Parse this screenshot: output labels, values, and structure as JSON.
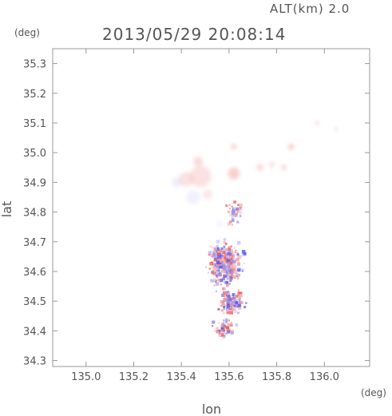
{
  "header": {
    "altitude_label": "ALT(km)  2.0",
    "timestamp": "2013/05/29  20:08:14",
    "y_unit": "(deg)",
    "x_unit": "(deg)"
  },
  "chart_data": {
    "type": "scatter",
    "title": "2013/05/29  20:08:14",
    "xlabel": "lon",
    "ylabel": "lat",
    "xlim": [
      134.86,
      136.19
    ],
    "ylim": [
      34.28,
      35.35
    ],
    "xticks": [
      "135.0",
      "135.2",
      "135.4",
      "135.6",
      "135.8",
      "136.0"
    ],
    "yticks": [
      "35.3",
      "35.2",
      "35.1",
      "35.0",
      "34.9",
      "34.8",
      "34.7",
      "34.6",
      "34.5",
      "34.4",
      "34.3"
    ],
    "grid": false,
    "colors": {
      "positive": "#f08888",
      "negative": "#8888ee",
      "axis": "#999999"
    },
    "blobs": [
      {
        "lon": 135.48,
        "lat": 34.92,
        "r": 0.045,
        "sign": "positive",
        "intensity": 0.25
      },
      {
        "lon": 135.42,
        "lat": 34.91,
        "r": 0.03,
        "sign": "positive",
        "intensity": 0.25
      },
      {
        "lon": 135.38,
        "lat": 34.9,
        "r": 0.02,
        "sign": "negative",
        "intensity": 0.15
      },
      {
        "lon": 135.45,
        "lat": 34.85,
        "r": 0.03,
        "sign": "negative",
        "intensity": 0.12
      },
      {
        "lon": 135.51,
        "lat": 34.86,
        "r": 0.02,
        "sign": "positive",
        "intensity": 0.2
      },
      {
        "lon": 135.47,
        "lat": 34.97,
        "r": 0.02,
        "sign": "positive",
        "intensity": 0.3
      },
      {
        "lon": 135.62,
        "lat": 34.93,
        "r": 0.025,
        "sign": "positive",
        "intensity": 0.4
      },
      {
        "lon": 135.62,
        "lat": 35.02,
        "r": 0.012,
        "sign": "positive",
        "intensity": 0.35
      },
      {
        "lon": 135.73,
        "lat": 34.95,
        "r": 0.015,
        "sign": "positive",
        "intensity": 0.3
      },
      {
        "lon": 135.78,
        "lat": 34.96,
        "r": 0.012,
        "sign": "positive",
        "intensity": 0.25
      },
      {
        "lon": 135.83,
        "lat": 34.95,
        "r": 0.012,
        "sign": "positive",
        "intensity": 0.3
      },
      {
        "lon": 135.86,
        "lat": 35.02,
        "r": 0.014,
        "sign": "positive",
        "intensity": 0.35
      },
      {
        "lon": 135.97,
        "lat": 35.1,
        "r": 0.008,
        "sign": "positive",
        "intensity": 0.35
      },
      {
        "lon": 136.05,
        "lat": 35.08,
        "r": 0.007,
        "sign": "positive",
        "intensity": 0.35
      },
      {
        "lon": 135.56,
        "lat": 34.76,
        "r": 0.012,
        "sign": "negative",
        "intensity": 0.12
      }
    ],
    "speckle_regions": [
      {
        "lon": 135.58,
        "lat": 34.63,
        "spread_lon": 0.09,
        "spread_lat": 0.09,
        "count": 420
      },
      {
        "lon": 135.61,
        "lat": 34.5,
        "spread_lon": 0.07,
        "spread_lat": 0.05,
        "count": 160
      },
      {
        "lon": 135.58,
        "lat": 34.41,
        "spread_lon": 0.06,
        "spread_lat": 0.04,
        "count": 70
      },
      {
        "lon": 135.62,
        "lat": 34.8,
        "spread_lon": 0.05,
        "spread_lat": 0.05,
        "count": 50
      }
    ]
  }
}
